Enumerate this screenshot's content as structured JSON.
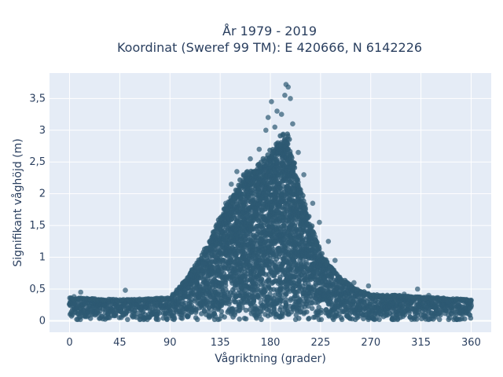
{
  "chart_data": {
    "type": "scatter",
    "title": [
      "År 1979 - 2019",
      "Koordinat (Sweref 99 TM): E 420666, N 6142226"
    ],
    "xlabel": "Vågriktning (grader)",
    "ylabel": "Signifikant våghöjd (m)",
    "xlim": [
      -18,
      378
    ],
    "ylim": [
      -0.18,
      3.9
    ],
    "xticks": [
      0,
      45,
      90,
      135,
      180,
      225,
      270,
      315,
      360
    ],
    "xtick_labels": [
      "0",
      "45",
      "90",
      "135",
      "180",
      "225",
      "270",
      "315",
      "360"
    ],
    "yticks": [
      0,
      0.5,
      1,
      1.5,
      2,
      2.5,
      3,
      3.5
    ],
    "ytick_labels": [
      "0",
      "0,5",
      "1",
      "1,5",
      "2",
      "2,5",
      "3",
      "3,5"
    ],
    "grid": true,
    "marker_color": "#2e5a73",
    "background_color": "#e5ecf6",
    "envelope": {
      "x": [
        0,
        45,
        90,
        100,
        115,
        125,
        135,
        145,
        155,
        165,
        175,
        185,
        195,
        205,
        215,
        225,
        240,
        255,
        270,
        300,
        330,
        360
      ],
      "y_max": [
        0.35,
        0.32,
        0.35,
        0.55,
        0.9,
        1.2,
        1.6,
        1.9,
        2.2,
        2.35,
        2.5,
        2.75,
        2.9,
        2.2,
        1.55,
        1.05,
        0.7,
        0.5,
        0.4,
        0.38,
        0.35,
        0.32
      ]
    },
    "outliers": [
      [
        194,
        3.72
      ],
      [
        196,
        3.68
      ],
      [
        193,
        3.55
      ],
      [
        198,
        3.5
      ],
      [
        181,
        3.45
      ],
      [
        186,
        3.3
      ],
      [
        178,
        3.2
      ],
      [
        190,
        3.25
      ],
      [
        184,
        3.05
      ],
      [
        176,
        3.0
      ],
      [
        200,
        3.1
      ],
      [
        170,
        2.7
      ],
      [
        162,
        2.55
      ],
      [
        150,
        2.35
      ],
      [
        156,
        2.3
      ],
      [
        145,
        2.15
      ],
      [
        205,
        2.65
      ],
      [
        210,
        2.3
      ],
      [
        218,
        1.85
      ],
      [
        224,
        1.55
      ],
      [
        232,
        1.25
      ],
      [
        238,
        0.95
      ],
      [
        255,
        0.6
      ],
      [
        268,
        0.55
      ],
      [
        300,
        0.42
      ],
      [
        312,
        0.5
      ],
      [
        322,
        0.4
      ],
      [
        340,
        0.3
      ],
      [
        10,
        0.45
      ],
      [
        4,
        0.38
      ],
      [
        50,
        0.48
      ],
      [
        108,
        0.72
      ],
      [
        113,
        0.62
      ],
      [
        120,
        0.9
      ],
      [
        128,
        1.15
      ],
      [
        133,
        1.5
      ],
      [
        140,
        1.85
      ]
    ]
  }
}
